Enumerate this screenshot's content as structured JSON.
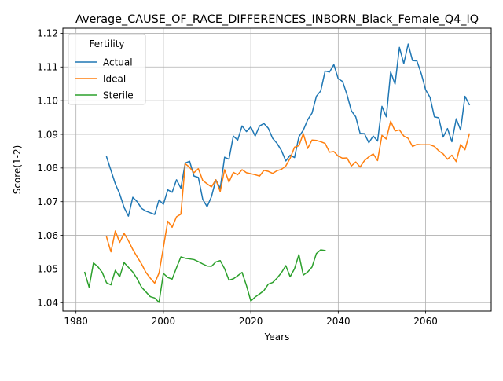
{
  "chart_data": {
    "type": "line",
    "title": "Average_CAUSE_OF_RACE_DIFFERENCES_INBORN_Black_Female_Q4_IQ",
    "xlabel": "Years",
    "ylabel": "Score(1-2)",
    "xlim": [
      1977,
      2075
    ],
    "ylim": [
      1.0375,
      1.1215
    ],
    "xticks": [
      1980,
      2000,
      2020,
      2040,
      2060
    ],
    "xtick_labels": [
      "1980",
      "2000",
      "2020",
      "2040",
      "2060"
    ],
    "yticks": [
      1.04,
      1.05,
      1.06,
      1.07,
      1.08,
      1.09,
      1.1,
      1.11,
      1.12
    ],
    "ytick_labels": [
      "1.04",
      "1.05",
      "1.06",
      "1.07",
      "1.08",
      "1.09",
      "1.10",
      "1.11",
      "1.12"
    ],
    "grid": true,
    "legend": {
      "title": "Fertility",
      "position": "top-left"
    },
    "series": [
      {
        "name": "Actual",
        "color": "#1f77b4",
        "x": [
          1987,
          1988,
          1989,
          1990,
          1991,
          1992,
          1993,
          1994,
          1995,
          1996,
          1997,
          1998,
          1999,
          2000,
          2001,
          2002,
          2003,
          2004,
          2005,
          2006,
          2007,
          2008,
          2009,
          2010,
          2011,
          2012,
          2013,
          2014,
          2015,
          2016,
          2017,
          2018,
          2019,
          2020,
          2021,
          2022,
          2023,
          2024,
          2025,
          2026,
          2027,
          2028,
          2029,
          2030,
          2031,
          2032,
          2033,
          2034,
          2035,
          2036,
          2037,
          2038,
          2039,
          2040,
          2041,
          2042,
          2043,
          2044,
          2045,
          2046,
          2047,
          2048,
          2049,
          2050,
          2051,
          2052,
          2053,
          2054,
          2055,
          2056,
          2057,
          2058,
          2059,
          2060,
          2061,
          2062,
          2063,
          2064,
          2065,
          2066,
          2067,
          2068,
          2069,
          2070
        ],
        "values": [
          1.0833,
          1.0793,
          1.0753,
          1.0723,
          1.0683,
          1.0657,
          1.0713,
          1.07,
          1.068,
          1.0672,
          1.0667,
          1.0662,
          1.0705,
          1.0692,
          1.0735,
          1.0728,
          1.0765,
          1.074,
          1.0815,
          1.082,
          1.0776,
          1.0772,
          1.0707,
          1.0685,
          1.0715,
          1.0765,
          1.074,
          1.0832,
          1.0826,
          1.0895,
          1.0883,
          1.0925,
          1.0908,
          1.0922,
          1.0895,
          1.0925,
          1.0932,
          1.0918,
          1.0888,
          1.0873,
          1.0852,
          1.0821,
          1.0838,
          1.0831,
          1.0893,
          1.0912,
          1.0943,
          1.0963,
          1.1013,
          1.1029,
          1.1088,
          1.1085,
          1.1107,
          1.1065,
          1.1057,
          1.1018,
          1.097,
          1.0952,
          1.0903,
          1.0902,
          1.0875,
          1.0895,
          1.088,
          1.0983,
          1.0952,
          1.1085,
          1.1049,
          1.1158,
          1.111,
          1.1168,
          1.1119,
          1.1118,
          1.108,
          1.1032,
          1.101,
          1.0952,
          1.0949,
          1.0892,
          1.0917,
          1.0878,
          1.0946,
          1.0913,
          1.1013,
          1.0988
        ]
      },
      {
        "name": "Ideal",
        "color": "#ff7f0e",
        "x": [
          1987,
          1988,
          1989,
          1990,
          1991,
          1992,
          1993,
          1994,
          1995,
          1996,
          1997,
          1998,
          1999,
          2000,
          2001,
          2002,
          2003,
          2004,
          2005,
          2006,
          2007,
          2008,
          2009,
          2010,
          2011,
          2012,
          2013,
          2014,
          2015,
          2016,
          2017,
          2018,
          2019,
          2020,
          2021,
          2022,
          2023,
          2024,
          2025,
          2026,
          2027,
          2028,
          2029,
          2030,
          2031,
          2032,
          2033,
          2034,
          2035,
          2036,
          2037,
          2038,
          2039,
          2040,
          2041,
          2042,
          2043,
          2044,
          2045,
          2046,
          2047,
          2048,
          2049,
          2050,
          2051,
          2052,
          2053,
          2054,
          2055,
          2056,
          2057,
          2058,
          2059,
          2060,
          2061,
          2062,
          2063,
          2064,
          2065,
          2066,
          2067,
          2068,
          2069,
          2070
        ],
        "values": [
          1.0595,
          1.0551,
          1.0613,
          1.0579,
          1.0606,
          1.0584,
          1.0558,
          1.0536,
          1.0515,
          1.049,
          1.0473,
          1.0458,
          1.0488,
          1.0564,
          1.0642,
          1.0624,
          1.0655,
          1.0663,
          1.0813,
          1.0802,
          1.0786,
          1.0798,
          1.0763,
          1.0753,
          1.0744,
          1.0765,
          1.073,
          1.0795,
          1.0758,
          1.0787,
          1.078,
          1.0795,
          1.0786,
          1.0783,
          1.078,
          1.0776,
          1.0793,
          1.079,
          1.0784,
          1.0792,
          1.0796,
          1.0806,
          1.0829,
          1.0862,
          1.0866,
          1.0902,
          1.0858,
          1.0883,
          1.0882,
          1.0878,
          1.0873,
          1.0847,
          1.0849,
          1.0835,
          1.0829,
          1.083,
          1.0806,
          1.0818,
          1.0803,
          1.0822,
          1.0833,
          1.0842,
          1.0822,
          1.0897,
          1.0886,
          1.0939,
          1.091,
          1.0913,
          1.0895,
          1.0888,
          1.0864,
          1.087,
          1.0869,
          1.0869,
          1.0869,
          1.0864,
          1.0851,
          1.0842,
          1.0826,
          1.0838,
          1.0819,
          1.087,
          1.0854,
          1.0901
        ]
      },
      {
        "name": "Sterile",
        "color": "#2ca02c",
        "x": [
          1982,
          1983,
          1984,
          1985,
          1986,
          1987,
          1988,
          1989,
          1990,
          1991,
          1992,
          1993,
          1994,
          1995,
          1996,
          1997,
          1998,
          1999,
          2000,
          2001,
          2002,
          2003,
          2004,
          2005,
          2006,
          2007,
          2008,
          2009,
          2010,
          2011,
          2012,
          2013,
          2014,
          2015,
          2016,
          2017,
          2018,
          2019,
          2020,
          2021,
          2022,
          2023,
          2024,
          2025,
          2026,
          2027,
          2028,
          2029,
          2030,
          2031,
          2032,
          2033,
          2034,
          2035,
          2036,
          2037
        ],
        "values": [
          1.049,
          1.0446,
          1.0518,
          1.0507,
          1.049,
          1.0459,
          1.0453,
          1.0496,
          1.0477,
          1.0519,
          1.0505,
          1.0491,
          1.0471,
          1.0446,
          1.0432,
          1.0418,
          1.0414,
          1.0401,
          1.0487,
          1.0475,
          1.047,
          1.0504,
          1.0536,
          1.0532,
          1.053,
          1.0528,
          1.0522,
          1.0515,
          1.0509,
          1.0508,
          1.0521,
          1.0525,
          1.0501,
          1.0467,
          1.0471,
          1.048,
          1.049,
          1.0451,
          1.0405,
          1.0417,
          1.0426,
          1.0436,
          1.0455,
          1.046,
          1.0473,
          1.0489,
          1.051,
          1.0477,
          1.0501,
          1.0543,
          1.0482,
          1.0491,
          1.0506,
          1.0546,
          1.0557,
          1.0555
        ]
      }
    ]
  }
}
